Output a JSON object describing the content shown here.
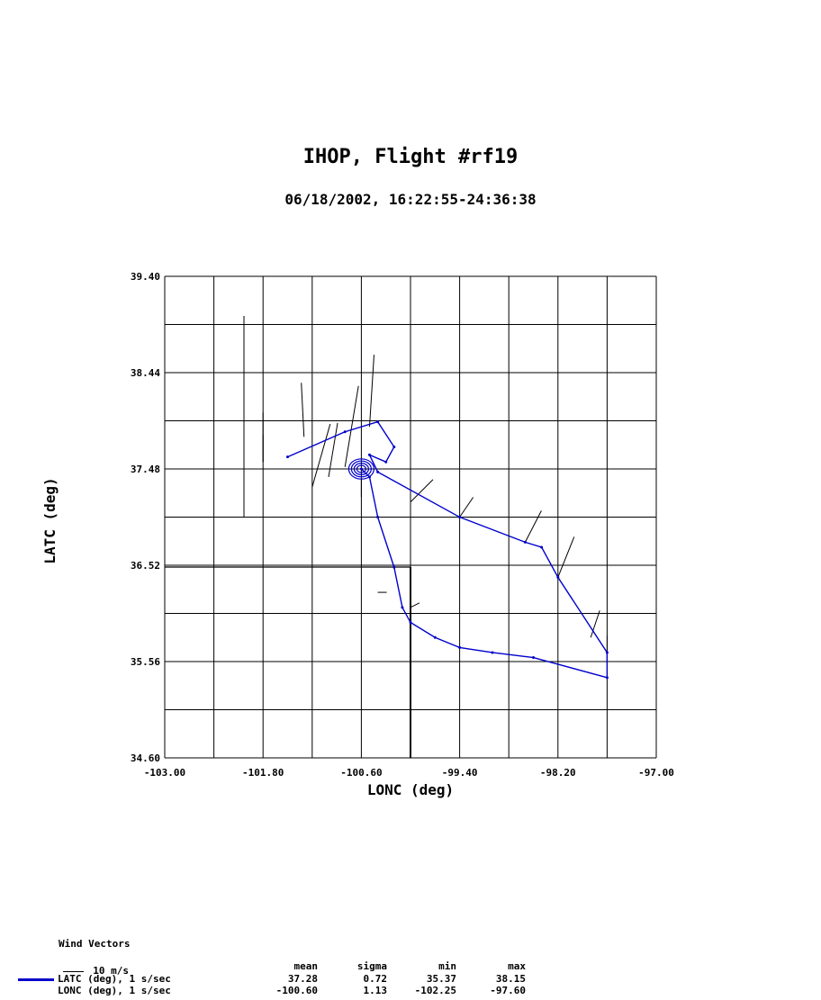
{
  "title": "IHOP, Flight #rf19",
  "subtitle": "06/18/2002, 16:22:55-24:36:38",
  "chart_data": {
    "type": "line",
    "title": "IHOP, Flight #rf19",
    "subtitle": "06/18/2002, 16:22:55-24:36:38",
    "xlabel": "LONC (deg)",
    "ylabel": "LATC (deg)",
    "xlim": [
      -103.0,
      -97.0
    ],
    "ylim": [
      34.6,
      39.4
    ],
    "x_ticks": [
      "-103.00",
      "-101.80",
      "-100.60",
      "-99.40",
      "-98.20",
      "-97.00"
    ],
    "y_ticks": [
      "34.60",
      "35.56",
      "36.52",
      "37.48",
      "38.44",
      "39.40"
    ],
    "grid": true,
    "series": [
      {
        "name": "LATC (deg), 1 s/sec",
        "color": "#0000cc",
        "x": [
          -101.5,
          -100.8,
          -100.4,
          -100.2,
          -100.3,
          -100.5,
          -100.4,
          -99.4,
          -98.6,
          -98.4,
          -98.2,
          -97.6,
          -97.6,
          -98.5,
          -99.0,
          -99.4,
          -99.7,
          -100.0,
          -100.1,
          -100.2,
          -100.4,
          -100.5,
          -100.6
        ],
        "y": [
          37.6,
          37.85,
          37.95,
          37.7,
          37.55,
          37.62,
          37.45,
          37.0,
          36.75,
          36.7,
          36.4,
          35.65,
          35.4,
          35.6,
          35.65,
          35.7,
          35.8,
          35.95,
          36.1,
          36.5,
          37.0,
          37.4,
          37.48
        ]
      }
    ],
    "annotations": [
      "Wind Vectors",
      "10 m/s"
    ]
  },
  "legend": {
    "heading": "Wind Vectors",
    "scale_label": "10 m/s"
  },
  "stats": {
    "headers": [
      "mean",
      "sigma",
      "min",
      "max"
    ],
    "rows": [
      {
        "label": "LATC (deg), 1 s/sec",
        "mean": "37.28",
        "sigma": "0.72",
        "min": "35.37",
        "max": "38.15"
      },
      {
        "label": "LONC (deg), 1 s/sec",
        "mean": "-100.60",
        "sigma": "1.13",
        "min": "-102.25",
        "max": "-97.60"
      }
    ]
  }
}
